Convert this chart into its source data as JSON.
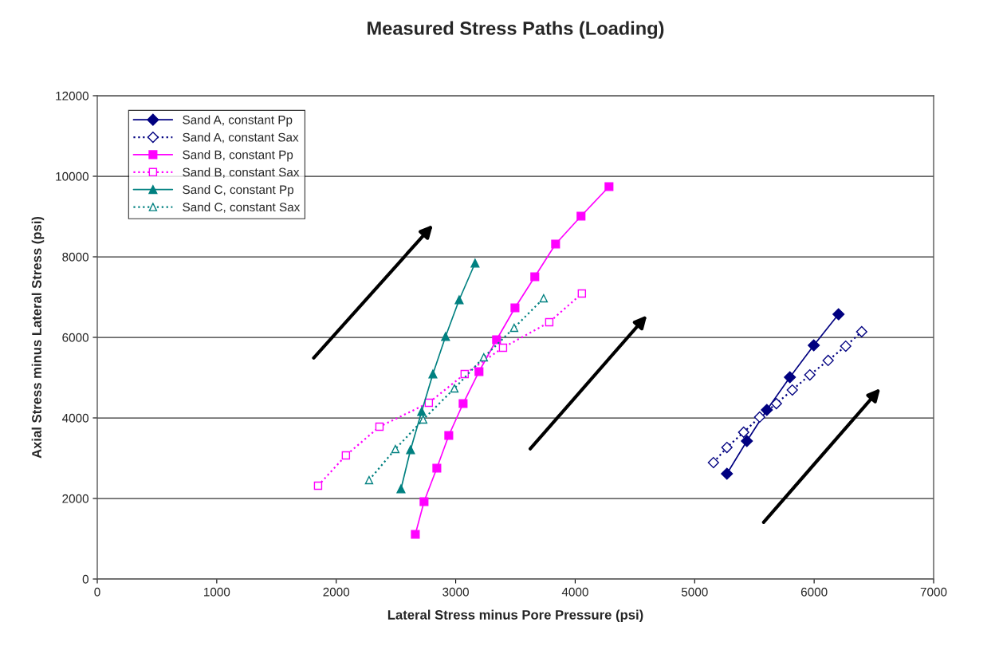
{
  "chart_data": {
    "type": "line",
    "title": "Measured Stress Paths (Loading)",
    "xlabel": "Lateral Stress minus Pore Pressure (psi)",
    "ylabel": "Axial Stress minus Lateral Stress (psi)",
    "xlim": [
      0,
      7000
    ],
    "xticks": [
      0,
      1000,
      2000,
      3000,
      4000,
      5000,
      6000,
      7000
    ],
    "ylim": [
      0,
      12000
    ],
    "yticks": [
      0,
      2000,
      4000,
      6000,
      8000,
      10000,
      12000
    ],
    "grid": "y",
    "legend": "top left",
    "series": [
      {
        "name": "Sand A, constant Pp",
        "color": "#000080",
        "marker": "diamond",
        "line_style": "solid",
        "x": [
          5270,
          5437,
          5604,
          5797,
          5997,
          6204
        ],
        "values": [
          2614,
          3426,
          4198,
          5010,
          5802,
          6574
        ]
      },
      {
        "name": "Sand A, constant Sax",
        "color": "#000080",
        "marker": "diamond",
        "line_style": "dotted",
        "x": [
          5157,
          5270,
          5410,
          5544,
          5684,
          5817,
          5964,
          6117,
          6264,
          6398
        ],
        "values": [
          2891,
          3267,
          3644,
          4020,
          4356,
          4693,
          5069,
          5426,
          5782,
          6139
        ]
      },
      {
        "name": "Sand B, constant Pp",
        "color": "#ff00ff",
        "marker": "square",
        "line_style": "solid",
        "x": [
          2662,
          2735,
          2842,
          2942,
          3062,
          3195,
          3342,
          3496,
          3662,
          3836,
          4049,
          4283
        ],
        "values": [
          1109,
          1921,
          2752,
          3564,
          4356,
          5149,
          5941,
          6733,
          7505,
          8317,
          9010,
          9743
        ]
      },
      {
        "name": "Sand B, constant Sax",
        "color": "#ff00ff",
        "marker": "square",
        "line_style": "dotted",
        "x": [
          1848,
          2081,
          2362,
          2775,
          3075,
          3396,
          3783,
          4056
        ],
        "values": [
          2317,
          3069,
          3782,
          4376,
          5089,
          5743,
          6376,
          7089
        ]
      },
      {
        "name": "Sand C, constant Pp",
        "color": "#008080",
        "marker": "triangle",
        "line_style": "solid",
        "x": [
          2542,
          2622,
          2715,
          2809,
          2915,
          3029,
          3162
        ],
        "values": [
          2238,
          3208,
          4158,
          5089,
          6020,
          6931,
          7842
        ]
      },
      {
        "name": "Sand C, constant Sax",
        "color": "#008080",
        "marker": "triangle",
        "line_style": "dotted",
        "x": [
          2275,
          2495,
          2728,
          2989,
          3235,
          3489,
          3736
        ],
        "values": [
          2455,
          3228,
          3960,
          4733,
          5505,
          6238,
          6970
        ]
      }
    ]
  }
}
